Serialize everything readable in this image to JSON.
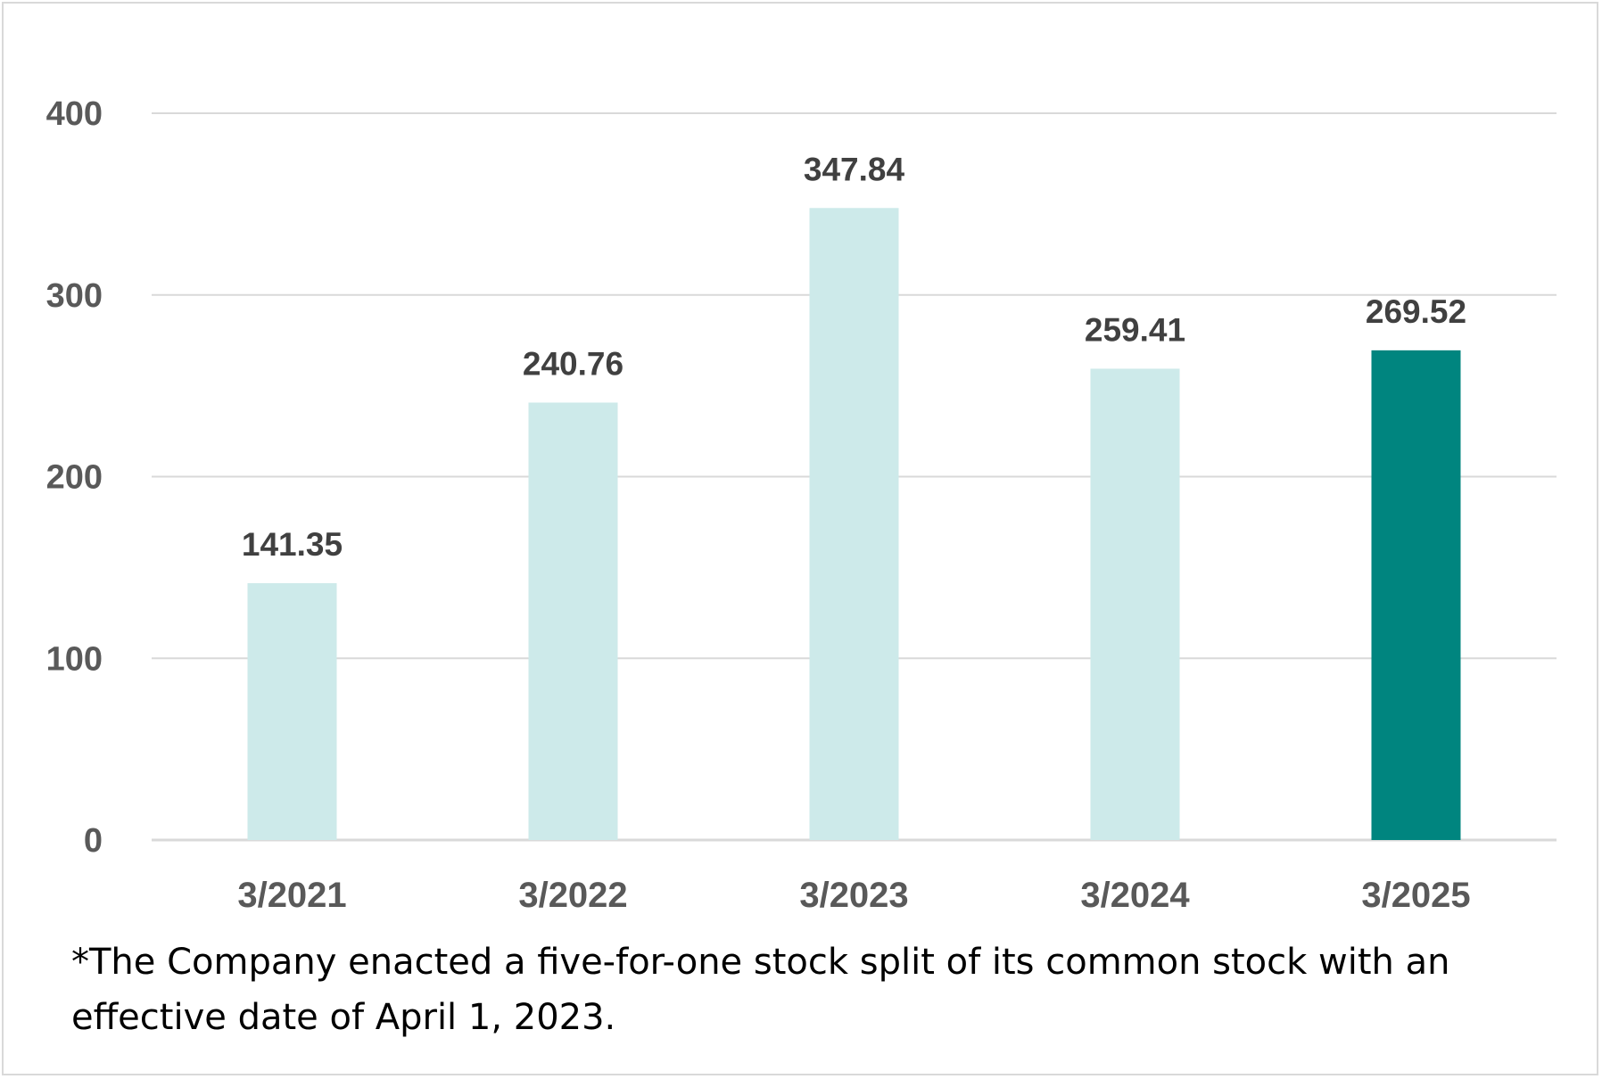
{
  "chart_data": {
    "type": "bar",
    "categories": [
      "3/2021",
      "3/2022",
      "3/2023",
      "3/2024",
      "3/2025"
    ],
    "values": [
      141.35,
      240.76,
      347.84,
      259.41,
      269.52
    ],
    "data_labels": [
      "141.35",
      "240.76",
      "347.84",
      "259.41",
      "269.52"
    ],
    "yticks": [
      "0",
      "100",
      "200",
      "300",
      "400"
    ],
    "ylim": [
      0,
      400
    ],
    "grid": true,
    "legend": "none",
    "colors": {
      "bar": "#cdeaea",
      "highlight": "#00857f",
      "gridline": "#d9d9d9",
      "axis": "#d9d9d9"
    },
    "highlight_index": 4
  },
  "footnote": "*The Company enacted a five-for-one stock split of its common stock with an effective date of April 1, 2023."
}
